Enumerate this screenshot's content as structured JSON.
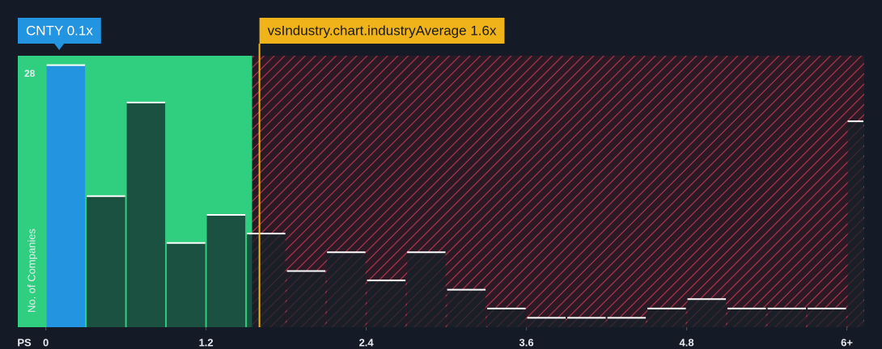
{
  "chart_data": {
    "type": "histogram",
    "x_label": "PS",
    "y_label": "No. of Companies",
    "bins": [
      0,
      0.3,
      0.6,
      0.9,
      1.2,
      1.5,
      1.8,
      2.1,
      2.4,
      2.7,
      3.0,
      3.3,
      3.6,
      3.9,
      4.2,
      4.5,
      4.8,
      5.1,
      5.4,
      5.7,
      6.0,
      6.3
    ],
    "values": [
      28,
      14,
      24,
      9,
      12,
      10,
      6,
      8,
      5,
      8,
      4,
      2,
      1,
      1,
      1,
      2,
      3,
      2,
      2,
      2,
      22
    ],
    "color": "#142028",
    "highlight_color": "#2394df",
    "xlim": [
      -0.21,
      6.13
    ],
    "ylim": [
      0,
      29
    ],
    "xticks": [
      0,
      1.2,
      2.4,
      3.6,
      4.8,
      {
        "value": 6,
        "label": "6+"
      }
    ],
    "yticks": [
      28
    ],
    "markers": [
      {
        "label": "CNTY 0.1x",
        "value": 0.1,
        "color": "#2394df"
      },
      {
        "label": "vsIndustry.chart.industryAverage 1.6x",
        "value": 1.6,
        "color": "#f0b31a"
      }
    ]
  }
}
